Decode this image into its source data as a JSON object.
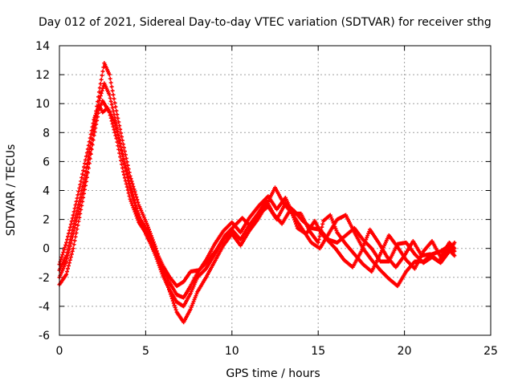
{
  "chart_data": {
    "type": "scatter",
    "title": "Day 012 of 2021, Sidereal Day-to-day VTEC variation (SDTVAR) for receiver sthg",
    "xlabel": "GPS time / hours",
    "ylabel": "SDTVAR / TECUs",
    "xlim": [
      0,
      25
    ],
    "ylim": [
      -6,
      14
    ],
    "x_ticks": [
      "0",
      "5",
      "10",
      "15",
      "20",
      "25"
    ],
    "y_ticks": [
      "-6",
      "-4",
      "-2",
      "0",
      "2",
      "4",
      "6",
      "8",
      "10",
      "12",
      "14"
    ],
    "grid": true,
    "marker": "plus",
    "series": [
      {
        "name": "satellite-track-1",
        "color": "#ff0000",
        "points": [
          [
            0.0,
            -2.5
          ],
          [
            0.4,
            -1.8
          ],
          [
            0.8,
            0.0
          ],
          [
            1.2,
            2.4
          ],
          [
            1.6,
            4.9
          ],
          [
            2.0,
            7.8
          ],
          [
            2.3,
            9.6
          ],
          [
            2.5,
            10.2
          ],
          [
            2.9,
            9.4
          ],
          [
            3.3,
            7.6
          ],
          [
            3.7,
            5.3
          ],
          [
            4.1,
            3.4
          ],
          [
            4.6,
            1.8
          ],
          [
            5.1,
            0.9
          ],
          [
            5.6,
            -0.6
          ],
          [
            6.0,
            -1.9
          ],
          [
            6.4,
            -2.9
          ],
          [
            6.8,
            -3.7
          ],
          [
            7.2,
            -4.0
          ],
          [
            7.6,
            -3.1
          ],
          [
            8.0,
            -2.0
          ],
          [
            8.5,
            -1.4
          ],
          [
            9.0,
            -0.4
          ],
          [
            9.5,
            0.6
          ],
          [
            10.0,
            1.3
          ],
          [
            10.5,
            0.6
          ],
          [
            11.0,
            1.6
          ],
          [
            11.5,
            2.4
          ],
          [
            12.0,
            3.3
          ],
          [
            12.4,
            2.4
          ],
          [
            12.9,
            1.7
          ],
          [
            13.4,
            2.7
          ],
          [
            13.8,
            1.4
          ],
          [
            14.3,
            1.0
          ],
          [
            14.8,
            1.9
          ],
          [
            15.2,
            1.0
          ],
          [
            15.6,
            0.5
          ],
          [
            16.0,
            0.0
          ],
          [
            16.5,
            -0.8
          ],
          [
            17.0,
            -1.3
          ],
          [
            17.5,
            -0.2
          ],
          [
            18.0,
            1.3
          ],
          [
            18.5,
            0.4
          ],
          [
            19.0,
            -0.6
          ],
          [
            19.5,
            -1.3
          ],
          [
            20.0,
            -0.5
          ],
          [
            20.5,
            0.5
          ],
          [
            21.0,
            -0.5
          ],
          [
            21.5,
            -0.4
          ],
          [
            22.0,
            -0.9
          ],
          [
            22.5,
            0.0
          ],
          [
            22.9,
            -0.5
          ]
        ]
      },
      {
        "name": "satellite-track-2",
        "color": "#ff0000",
        "points": [
          [
            0.0,
            -1.5
          ],
          [
            0.4,
            -0.5
          ],
          [
            0.8,
            1.5
          ],
          [
            1.2,
            3.5
          ],
          [
            1.6,
            5.8
          ],
          [
            2.0,
            8.5
          ],
          [
            2.3,
            10.8
          ],
          [
            2.6,
            12.8
          ],
          [
            2.9,
            12.0
          ],
          [
            3.3,
            9.5
          ],
          [
            3.7,
            7.2
          ],
          [
            4.1,
            5.0
          ],
          [
            4.6,
            3.0
          ],
          [
            5.1,
            1.6
          ],
          [
            5.6,
            0.0
          ],
          [
            6.0,
            -1.6
          ],
          [
            6.4,
            -3.0
          ],
          [
            6.8,
            -4.4
          ],
          [
            7.2,
            -5.1
          ],
          [
            7.6,
            -4.2
          ],
          [
            8.0,
            -3.0
          ],
          [
            8.5,
            -2.0
          ],
          [
            9.0,
            -0.9
          ],
          [
            9.5,
            0.2
          ],
          [
            10.0,
            1.0
          ],
          [
            10.5,
            0.2
          ],
          [
            11.0,
            1.2
          ],
          [
            11.5,
            2.0
          ],
          [
            12.0,
            3.0
          ],
          [
            12.5,
            4.2
          ],
          [
            13.0,
            3.1
          ],
          [
            13.5,
            2.4
          ],
          [
            14.0,
            2.4
          ],
          [
            14.5,
            1.2
          ],
          [
            15.0,
            0.4
          ],
          [
            15.3,
            1.9
          ],
          [
            15.7,
            2.3
          ],
          [
            16.1,
            1.1
          ],
          [
            16.6,
            0.3
          ],
          [
            17.1,
            -0.4
          ],
          [
            17.6,
            -1.1
          ],
          [
            18.1,
            -1.6
          ],
          [
            18.6,
            -0.4
          ],
          [
            19.1,
            0.9
          ],
          [
            19.6,
            0.1
          ],
          [
            20.1,
            -0.8
          ],
          [
            20.6,
            -1.4
          ],
          [
            21.1,
            -0.2
          ],
          [
            21.6,
            0.5
          ],
          [
            22.1,
            -0.6
          ],
          [
            22.6,
            0.4
          ],
          [
            22.9,
            0.0
          ]
        ]
      },
      {
        "name": "satellite-track-3",
        "color": "#ff0000",
        "points": [
          [
            0.0,
            -1.1
          ],
          [
            0.4,
            0.4
          ],
          [
            0.8,
            2.3
          ],
          [
            1.2,
            4.4
          ],
          [
            1.6,
            6.6
          ],
          [
            2.0,
            8.9
          ],
          [
            2.3,
            9.9
          ],
          [
            2.5,
            9.4
          ],
          [
            2.8,
            9.7
          ],
          [
            3.2,
            8.7
          ],
          [
            3.6,
            6.8
          ],
          [
            4.0,
            4.7
          ],
          [
            4.5,
            2.6
          ],
          [
            5.0,
            1.0
          ],
          [
            5.5,
            -0.2
          ],
          [
            6.0,
            -1.4
          ],
          [
            6.4,
            -2.4
          ],
          [
            6.8,
            -3.2
          ],
          [
            7.2,
            -3.4
          ],
          [
            7.6,
            -2.6
          ],
          [
            8.0,
            -1.7
          ],
          [
            8.5,
            -0.8
          ],
          [
            9.0,
            0.3
          ],
          [
            9.5,
            1.2
          ],
          [
            10.0,
            1.8
          ],
          [
            10.5,
            1.1
          ],
          [
            11.0,
            2.1
          ],
          [
            11.6,
            3.0
          ],
          [
            12.1,
            3.6
          ],
          [
            12.6,
            2.7
          ],
          [
            13.1,
            3.5
          ],
          [
            13.6,
            2.2
          ],
          [
            14.1,
            1.3
          ],
          [
            14.6,
            0.4
          ],
          [
            15.1,
            0.0
          ],
          [
            15.6,
            1.0
          ],
          [
            16.1,
            2.0
          ],
          [
            16.6,
            2.3
          ],
          [
            17.1,
            1.1
          ],
          [
            17.6,
            0.0
          ],
          [
            18.1,
            -0.8
          ],
          [
            18.6,
            -1.5
          ],
          [
            19.1,
            -2.1
          ],
          [
            19.6,
            -2.6
          ],
          [
            20.1,
            -1.6
          ],
          [
            20.6,
            -0.9
          ],
          [
            21.1,
            -0.9
          ],
          [
            21.6,
            -0.4
          ],
          [
            22.1,
            -0.2
          ],
          [
            22.6,
            0.2
          ],
          [
            22.9,
            -0.2
          ]
        ]
      },
      {
        "name": "satellite-track-4",
        "color": "#ff0000",
        "points": [
          [
            0.0,
            -2.0
          ],
          [
            0.4,
            -0.9
          ],
          [
            0.8,
            1.0
          ],
          [
            1.2,
            3.0
          ],
          [
            1.6,
            5.3
          ],
          [
            2.0,
            8.2
          ],
          [
            2.3,
            10.2
          ],
          [
            2.6,
            11.4
          ],
          [
            2.9,
            10.6
          ],
          [
            3.3,
            8.6
          ],
          [
            3.7,
            6.2
          ],
          [
            4.1,
            4.2
          ],
          [
            4.6,
            2.2
          ],
          [
            5.1,
            1.2
          ],
          [
            5.6,
            -0.2
          ],
          [
            6.0,
            -1.2
          ],
          [
            6.4,
            -2.0
          ],
          [
            6.8,
            -2.6
          ],
          [
            7.2,
            -2.3
          ],
          [
            7.6,
            -1.6
          ],
          [
            8.1,
            -1.5
          ],
          [
            8.6,
            -0.9
          ],
          [
            9.1,
            -0.1
          ],
          [
            9.6,
            0.9
          ],
          [
            10.1,
            1.5
          ],
          [
            10.6,
            2.1
          ],
          [
            11.1,
            1.5
          ],
          [
            11.6,
            2.4
          ],
          [
            12.1,
            2.9
          ],
          [
            12.6,
            2.0
          ],
          [
            13.1,
            3.1
          ],
          [
            13.6,
            2.6
          ],
          [
            14.1,
            1.9
          ],
          [
            14.6,
            1.4
          ],
          [
            15.1,
            1.3
          ],
          [
            15.6,
            0.6
          ],
          [
            16.1,
            0.4
          ],
          [
            16.6,
            0.9
          ],
          [
            17.1,
            1.4
          ],
          [
            17.6,
            0.6
          ],
          [
            18.1,
            0.0
          ],
          [
            18.6,
            -0.9
          ],
          [
            19.1,
            -0.9
          ],
          [
            19.6,
            0.3
          ],
          [
            20.1,
            0.4
          ],
          [
            20.6,
            -0.4
          ],
          [
            21.1,
            -1.0
          ],
          [
            21.6,
            -0.6
          ],
          [
            22.1,
            -1.0
          ],
          [
            22.6,
            -0.2
          ],
          [
            22.9,
            0.4
          ]
        ]
      }
    ]
  }
}
